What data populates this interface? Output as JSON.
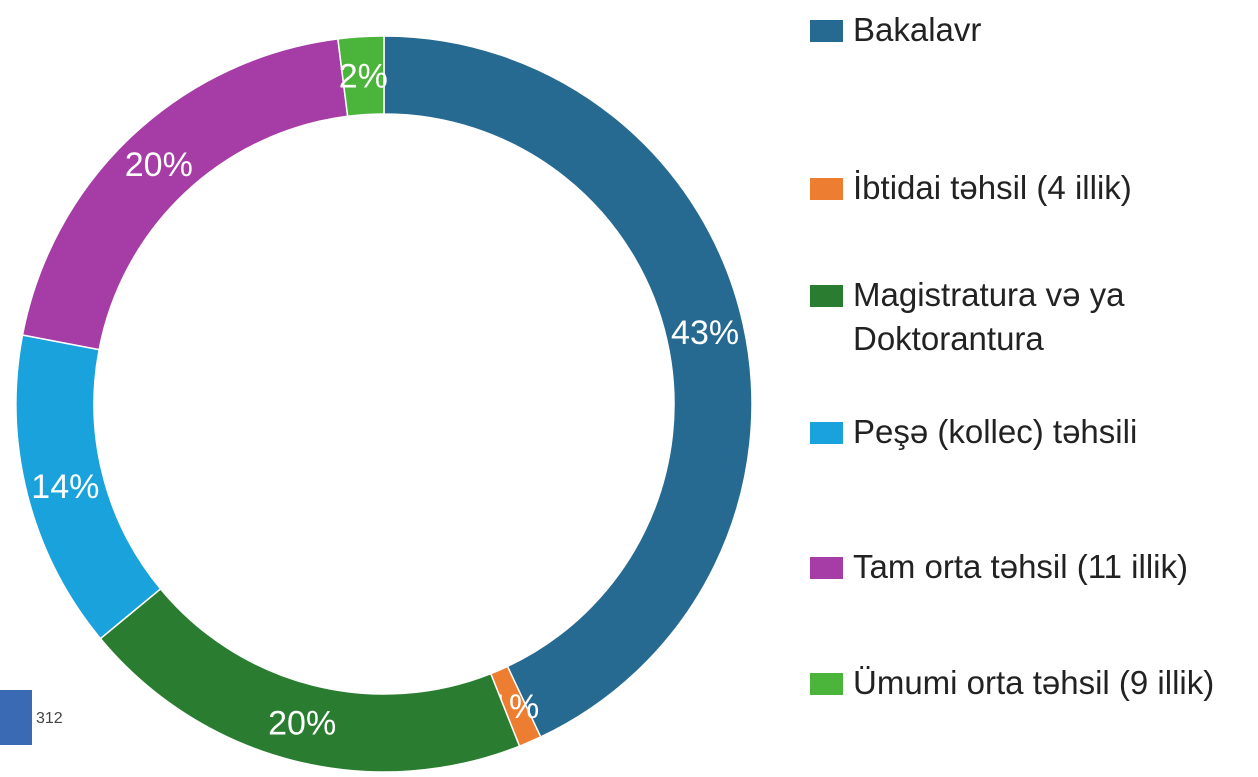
{
  "chart_data": {
    "type": "donut",
    "categories": [
      "Bakalavr",
      "İbtidai təhsil (4 illik)",
      "Magistratura və ya Doktorantura",
      "Peşə (kollec) təhsili",
      "Tam orta təhsil (11 illik)",
      "Ümumi orta təhsil (9 illik)"
    ],
    "values": [
      43,
      1,
      20,
      14,
      20,
      2
    ],
    "value_labels": [
      "43%",
      "1%",
      "20%",
      "14%",
      "20%",
      "2%"
    ],
    "colors": [
      "#276a91",
      "#ed7d31",
      "#2a7d30",
      "#1aa2dc",
      "#a63ca6",
      "#4bb43a"
    ],
    "legend": "right"
  },
  "logo": "312"
}
